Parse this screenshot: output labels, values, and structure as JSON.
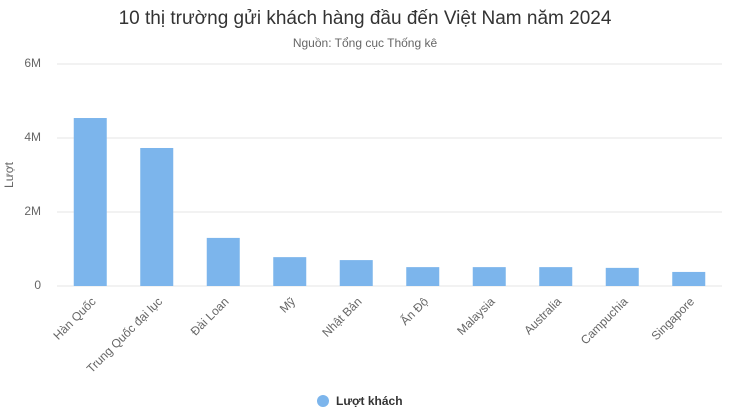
{
  "chart_data": {
    "type": "bar",
    "title": "10 thị trường gửi khách hàng đầu đến Việt Nam năm 2024",
    "subtitle": "Nguồn: Tổng cục Thống kê",
    "y_label": "Lượt",
    "categories": [
      "Hàn Quốc",
      "Trung Quốc đại lục",
      "Đài Loan",
      "Mỹ",
      "Nhật Bản",
      "Ấn Độ",
      "Malaysia",
      "Australia",
      "Campuchia",
      "Singapore"
    ],
    "series": [
      {
        "name": "Lượt khách",
        "color": "#7cb5ec",
        "values": [
          4540000,
          3730000,
          1300000,
          780000,
          700000,
          510000,
          510000,
          510000,
          490000,
          380000
        ]
      }
    ],
    "ylim": [
      0,
      6000000
    ],
    "yticks": [
      0,
      {
        "value": 2000000,
        "label": "2M"
      },
      {
        "value": 4000000,
        "label": "4M"
      },
      {
        "value": 6000000,
        "label": "6M"
      }
    ],
    "grid": true,
    "legend": "bottom"
  }
}
